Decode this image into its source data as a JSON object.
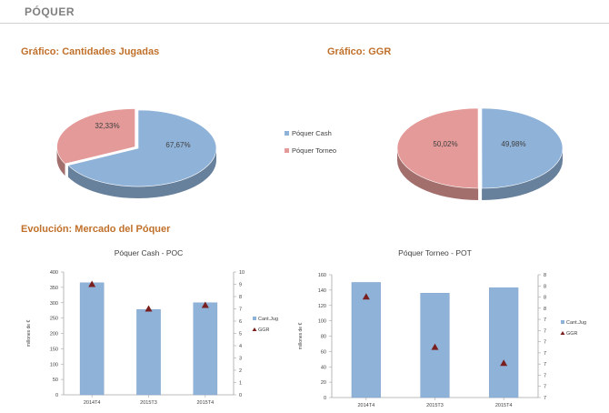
{
  "page": {
    "title": "PÓQUER"
  },
  "headings": {
    "chart1": "Gráfico: Cantidades Jugadas",
    "chart2": "Gráfico: GGR",
    "evolution": "Evolución: Mercado del Póquer"
  },
  "colors": {
    "cash": "#8fb2d9",
    "torneo": "#e39a98",
    "ggr_marker": "#7a1f1f",
    "heading": "#c0702a"
  },
  "chart_data": [
    {
      "type": "pie",
      "title": "Gráfico: Cantidades Jugadas",
      "labels": [
        "Póquer Cash",
        "Póquer Torneo"
      ],
      "values": [
        67.67,
        32.33
      ],
      "value_labels": [
        "67,67%",
        "32,33%"
      ],
      "legend": "right"
    },
    {
      "type": "pie",
      "title": "Gráfico: GGR",
      "labels": [
        "Póquer Cash",
        "Póquer Torneo"
      ],
      "values": [
        49.98,
        50.02
      ],
      "value_labels": [
        "49,98%",
        "50,02%"
      ]
    },
    {
      "type": "bar",
      "title": "Póquer Cash - POC",
      "categories": [
        "2014T4",
        "2015T3",
        "2015T4"
      ],
      "ylabel": "millones de €",
      "ylim": [
        0,
        400
      ],
      "yticks": [
        "0",
        "50",
        "100",
        "150",
        "200",
        "250",
        "300",
        "350",
        "400"
      ],
      "y2ticks": [
        "0",
        "1",
        "2",
        "3",
        "4",
        "5",
        "6",
        "7",
        "8",
        "9",
        "10"
      ],
      "y2lim": [
        0,
        10
      ],
      "series": [
        {
          "name": "Cant.Jug",
          "values": [
            365,
            278,
            300
          ],
          "axis": "left"
        },
        {
          "name": "GGR",
          "values": [
            9.0,
            7.0,
            7.3
          ],
          "axis": "right",
          "marker": "triangle"
        }
      ],
      "legend": "right"
    },
    {
      "type": "bar",
      "title": "Póquer Torneo - POT",
      "categories": [
        "2014T4",
        "2015T3",
        "2015T4"
      ],
      "ylabel": "millones de €",
      "ylim": [
        0,
        160
      ],
      "yticks": [
        "0",
        "20",
        "40",
        "60",
        "80",
        "100",
        "120",
        "140",
        "160"
      ],
      "y2ticks": [
        "7",
        "7",
        "7",
        "7",
        "7",
        "7",
        "7",
        "7",
        "8",
        "8",
        "8",
        "8"
      ],
      "series": [
        {
          "name": "Cant.Jug",
          "values": [
            150,
            136,
            143
          ],
          "axis": "left"
        },
        {
          "name": "GGR",
          "values": [
            0.82,
            0.41,
            0.28
          ],
          "axis": "right",
          "marker": "triangle",
          "note": "right axis relative position (0-1)"
        }
      ],
      "legend": "right"
    }
  ]
}
